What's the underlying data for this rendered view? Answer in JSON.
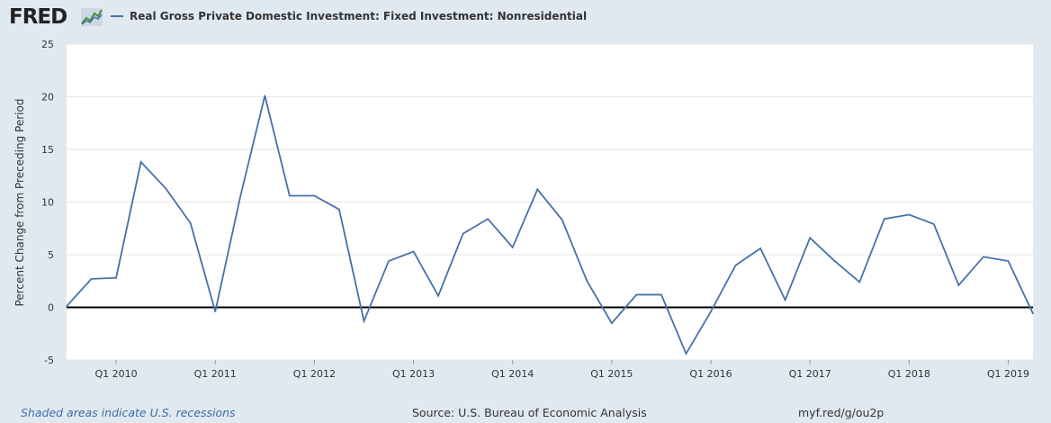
{
  "header": {
    "logo_text": "FRED",
    "series_title": "Real Gross Private Domestic Investment: Fixed Investment: Nonresidential",
    "series_color": "#4572a7"
  },
  "footer": {
    "recession_note": "Shaded areas indicate U.S. recessions",
    "source": "Source: U.S. Bureau of Economic Analysis",
    "short_url": "myf.red/g/ou2p"
  },
  "chart_data": {
    "type": "line",
    "title": "",
    "ylabel": "Percent Change from Preceding Period",
    "xlabel": "",
    "ylim": [
      -5,
      25
    ],
    "yticks": [
      -5,
      0,
      5,
      10,
      15,
      20,
      25
    ],
    "xtick_labels": [
      "Q1 2010",
      "Q1 2011",
      "Q1 2012",
      "Q1 2013",
      "Q1 2014",
      "Q1 2015",
      "Q1 2016",
      "Q1 2017",
      "Q1 2018",
      "Q1 2019"
    ],
    "grid": true,
    "background": "#ffffff",
    "zero_line_color": "#000000",
    "series": [
      {
        "name": "Real Gross Private Domestic Investment: Fixed Investment: Nonresidential",
        "color": "#4572a7",
        "x": [
          "Q3 2009",
          "Q4 2009",
          "Q1 2010",
          "Q2 2010",
          "Q3 2010",
          "Q4 2010",
          "Q1 2011",
          "Q2 2011",
          "Q3 2011",
          "Q4 2011",
          "Q1 2012",
          "Q2 2012",
          "Q3 2012",
          "Q4 2012",
          "Q1 2013",
          "Q2 2013",
          "Q3 2013",
          "Q4 2013",
          "Q1 2014",
          "Q2 2014",
          "Q3 2014",
          "Q4 2014",
          "Q1 2015",
          "Q2 2015",
          "Q3 2015",
          "Q4 2015",
          "Q1 2016",
          "Q2 2016",
          "Q3 2016",
          "Q4 2016",
          "Q1 2017",
          "Q2 2017",
          "Q3 2017",
          "Q4 2017",
          "Q1 2018",
          "Q2 2018",
          "Q3 2018",
          "Q4 2018",
          "Q1 2019",
          "Q2 2019"
        ],
        "values": [
          0.1,
          2.7,
          2.8,
          13.8,
          11.3,
          8.0,
          -0.4,
          10.4,
          20.1,
          10.6,
          10.6,
          9.3,
          -1.3,
          4.4,
          5.3,
          1.1,
          7.0,
          8.4,
          5.7,
          11.2,
          8.3,
          2.5,
          -1.5,
          1.2,
          1.2,
          -4.4,
          -0.4,
          4.0,
          5.6,
          0.7,
          6.6,
          4.4,
          2.4,
          8.4,
          8.8,
          7.9,
          2.1,
          4.8,
          4.4,
          -0.6
        ]
      }
    ]
  }
}
